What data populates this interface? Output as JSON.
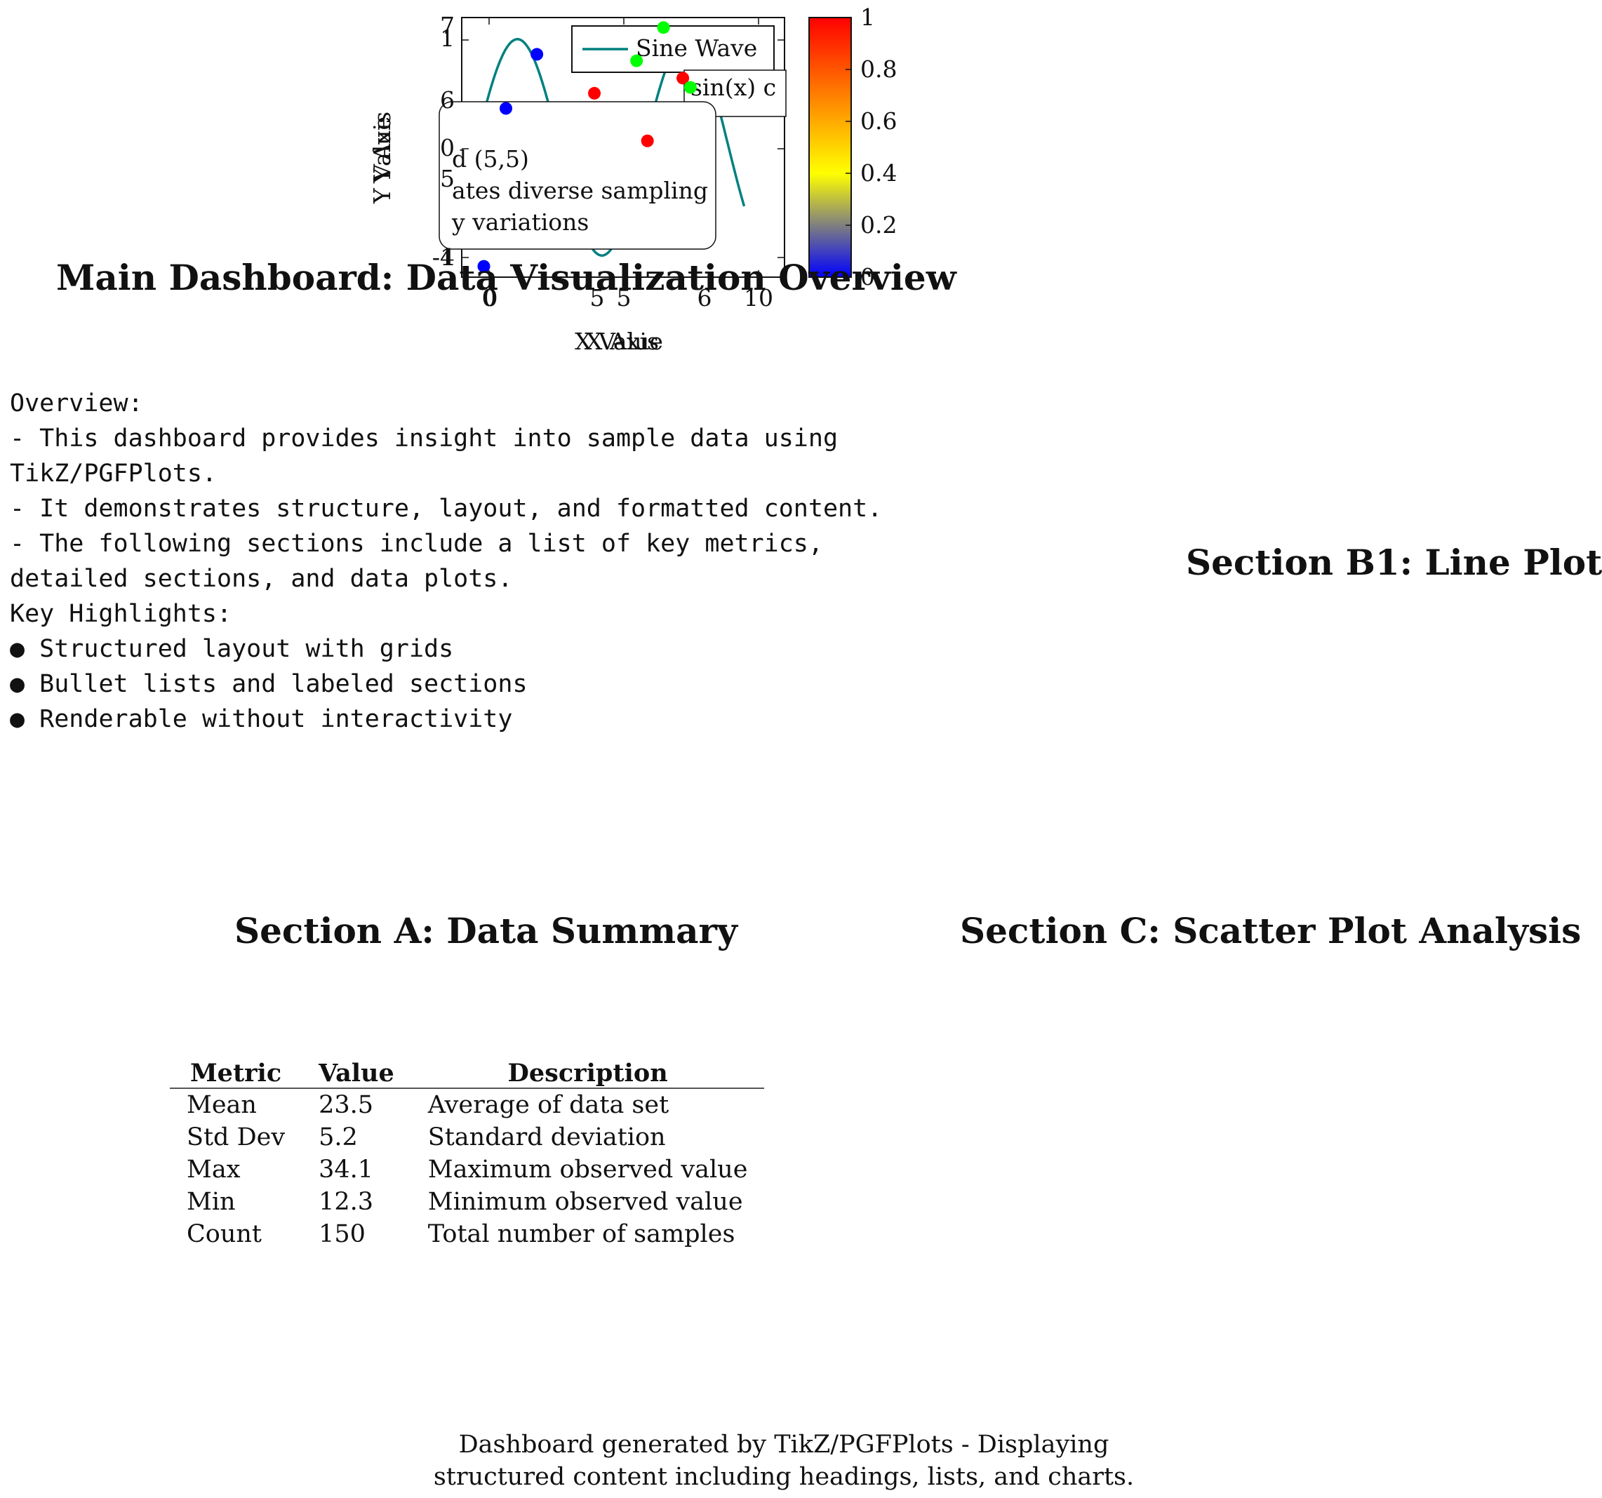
{
  "headings": {
    "main": "Main Dashboard: Data Visualization Overview",
    "section_b1": "Section B1: Line Plot",
    "section_a": "Section A: Data Summary",
    "section_c": "Section C: Scatter Plot Analysis"
  },
  "overview": {
    "lines": [
      "Overview:",
      "- This dashboard provides insight into sample data using",
      "TikZ/PGFPlots.",
      "- It demonstrates structure, layout, and formatted content.",
      "- The following sections include a list of key metrics,",
      "detailed sections, and data plots.",
      "Key Highlights:"
    ],
    "bullets": [
      "Structured layout with grids",
      "Bullet lists and labeled sections",
      "Renderable without interactivity"
    ]
  },
  "summary_table": {
    "headers": [
      "Metric",
      "Value",
      "Description"
    ],
    "rows": [
      [
        "Mean",
        "23.5",
        "Average of data set"
      ],
      [
        "Std Dev",
        "5.2",
        "Standard deviation"
      ],
      [
        "Max",
        "34.1",
        "Maximum observed value"
      ],
      [
        "Min",
        "12.3",
        "Minimum observed value"
      ],
      [
        "Count",
        "150",
        "Total number of samples"
      ]
    ]
  },
  "footer": {
    "line1": "Dashboard generated by TikZ/PGFPlots - Displaying",
    "line2": "structured content including headings, lists, and charts."
  },
  "colors": {
    "sine": "#008080",
    "low": "#0000ff",
    "mid": "#ffff00",
    "high": "#ff0000",
    "green": "#00ff00"
  },
  "chart_data": [
    {
      "type": "line",
      "series": [
        {
          "name": "Sine Wave",
          "function": "sin(x)"
        }
      ],
      "xlabel": "X Axis",
      "ylabel": "Y Axis",
      "xlim": [
        -0.5,
        11.5
      ],
      "ylim": [
        -1.2,
        1.2
      ],
      "xticks": [
        "0",
        "5",
        "10"
      ],
      "yticks": [
        "-1",
        "0",
        "1"
      ],
      "legend": "top-right",
      "annotation": "sin(x) c"
    },
    {
      "type": "scatter",
      "xlabel": "X Value",
      "ylabel": "Y Value",
      "xlim": [
        -0.5,
        6.8
      ],
      "ylim": [
        -4.5,
        7.5
      ],
      "xticks": [
        "0",
        "5"
      ],
      "yticks": [
        "-4",
        "5"
      ],
      "points": [
        {
          "x": 0,
          "y": -4,
          "meta": 0
        },
        {
          "x": 0.5,
          "y": 3.3,
          "meta": 0
        },
        {
          "x": 1.2,
          "y": 5.8,
          "meta": 0
        },
        {
          "x": 2.5,
          "y": 4,
          "meta": 1
        },
        {
          "x": 3.7,
          "y": 1.8,
          "meta": 1
        },
        {
          "x": 4.5,
          "y": 4.7,
          "meta": 1
        }
      ],
      "colorbar": {
        "min": 0,
        "max": 1,
        "ticks": [
          "0",
          "0.2",
          "0.4",
          "0.6",
          "0.8",
          "1"
        ]
      },
      "note_lines": [
        "d (5,5)",
        "ates diverse sampling",
        "y variations"
      ]
    },
    {
      "type": "scatter",
      "xlim": [
        -0.5,
        11.5
      ],
      "ylim": [
        -0.5,
        7.3
      ],
      "xticks": [
        "6"
      ],
      "yticks": [
        "6",
        "7"
      ],
      "points": [
        {
          "x": 6,
          "y": 6
        },
        {
          "x": 7,
          "y": 7
        },
        {
          "x": 8,
          "y": 5.2
        }
      ]
    }
  ]
}
